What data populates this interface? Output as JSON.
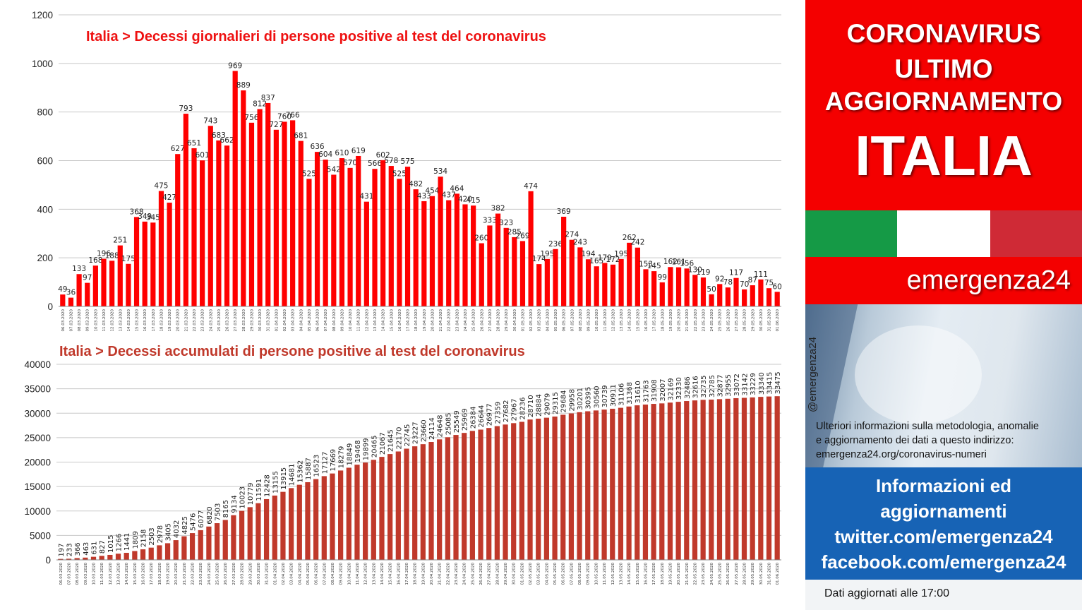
{
  "chart_data": [
    {
      "type": "bar",
      "title": "Italia > Decessi giornalieri di persone positive al test del coronavirus",
      "ylim": [
        0,
        1200
      ],
      "yticks": [
        0,
        200,
        400,
        600,
        800,
        1000,
        1200
      ],
      "grid": true,
      "bar_color": "#ff0000",
      "categories": [
        "06.03.2020",
        "07.03.2020",
        "08.03.2020",
        "09.03.2020",
        "10.03.2020",
        "11.03.2020",
        "12.03.2020",
        "13.03.2020",
        "14.03.2020",
        "15.03.2020",
        "16.03.2020",
        "17.03.2020",
        "18.03.2020",
        "19.03.2020",
        "20.03.2020",
        "21.03.2020",
        "22.03.2020",
        "23.03.2020",
        "24.03.2020",
        "25.03.2020",
        "26.03.2020",
        "27.03.2020",
        "28.03.2020",
        "29.03.2020",
        "30.03.2020",
        "31.03.2020",
        "01.04.2020",
        "02.04.2020",
        "03.04.2020",
        "04.04.2020",
        "05.04.2020",
        "06.04.2020",
        "07.04.2020",
        "08.04.2020",
        "09.04.2020",
        "10.04.2020",
        "11.04.2020",
        "12.04.2020",
        "13.04.2020",
        "14.04.2020",
        "15.04.2020",
        "16.04.2020",
        "17.04.2020",
        "18.04.2020",
        "19.04.2020",
        "20.04.2020",
        "21.04.2020",
        "22.04.2020",
        "23.04.2020",
        "24.04.2020",
        "25.04.2020",
        "26.04.2020",
        "27.04.2020",
        "28.04.2020",
        "29.04.2020",
        "30.04.2020",
        "01.05.2020",
        "02.05.2020",
        "03.05.2020",
        "04.05.2020",
        "05.05.2020",
        "06.05.2020",
        "07.05.2020",
        "08.05.2020",
        "09.05.2020",
        "10.05.2020",
        "11.05.2020",
        "12.05.2020",
        "13.05.2020",
        "14.05.2020",
        "15.05.2020",
        "16.05.2020",
        "17.05.2020",
        "18.05.2020",
        "19.05.2020",
        "20.05.2020",
        "21.05.2020",
        "22.05.2020",
        "23.05.2020",
        "24.05.2020",
        "25.05.2020",
        "26.05.2020",
        "27.05.2020",
        "28.05.2020",
        "29.05.2020",
        "30.05.2020",
        "31.05.2020",
        "01.06.2020"
      ],
      "values": [
        49,
        36,
        133,
        97,
        168,
        196,
        188,
        251,
        175,
        368,
        349,
        345,
        475,
        427,
        627,
        793,
        651,
        601,
        743,
        683,
        662,
        969,
        889,
        756,
        812,
        837,
        727,
        760,
        766,
        681,
        525,
        636,
        604,
        542,
        610,
        570,
        619,
        431,
        566,
        602,
        578,
        525,
        575,
        482,
        433,
        454,
        534,
        437,
        464,
        420,
        415,
        260,
        333,
        382,
        323,
        285,
        269,
        474,
        174,
        195,
        236,
        369,
        274,
        243,
        194,
        165,
        179,
        172,
        195,
        262,
        242,
        153,
        145,
        99,
        162,
        161,
        156,
        130,
        119,
        50,
        92,
        78,
        117,
        70,
        87,
        111,
        75,
        60
      ]
    },
    {
      "type": "bar",
      "title": "Italia > Decessi accumulati di persone positive al test del coronavirus",
      "ylim": [
        0,
        40000
      ],
      "yticks": [
        0,
        5000,
        10000,
        15000,
        20000,
        25000,
        30000,
        35000,
        40000
      ],
      "grid": true,
      "bar_color": "#c0392b",
      "categories": [
        "06.03.2020",
        "07.03.2020",
        "08.03.2020",
        "09.03.2020",
        "10.03.2020",
        "11.03.2020",
        "12.03.2020",
        "13.03.2020",
        "14.03.2020",
        "15.03.2020",
        "16.03.2020",
        "17.03.2020",
        "18.03.2020",
        "19.03.2020",
        "20.03.2020",
        "21.03.2020",
        "22.03.2020",
        "23.03.2020",
        "24.03.2020",
        "25.03.2020",
        "26.03.2020",
        "27.03.2020",
        "28.03.2020",
        "29.03.2020",
        "30.03.2020",
        "31.03.2020",
        "01.04.2020",
        "02.04.2020",
        "03.04.2020",
        "04.04.2020",
        "05.04.2020",
        "06.04.2020",
        "07.04.2020",
        "08.04.2020",
        "09.04.2020",
        "10.04.2020",
        "11.04.2020",
        "12.04.2020",
        "13.04.2020",
        "14.04.2020",
        "15.04.2020",
        "16.04.2020",
        "17.04.2020",
        "18.04.2020",
        "19.04.2020",
        "20.04.2020",
        "21.04.2020",
        "22.04.2020",
        "23.04.2020",
        "24.04.2020",
        "25.04.2020",
        "26.04.2020",
        "27.04.2020",
        "28.04.2020",
        "29.04.2020",
        "30.04.2020",
        "01.05.2020",
        "02.05.2020",
        "03.05.2020",
        "04.05.2020",
        "05.05.2020",
        "06.05.2020",
        "07.05.2020",
        "08.05.2020",
        "09.05.2020",
        "10.05.2020",
        "11.05.2020",
        "12.05.2020",
        "13.05.2020",
        "14.05.2020",
        "15.05.2020",
        "16.05.2020",
        "17.05.2020",
        "18.05.2020",
        "19.05.2020",
        "20.05.2020",
        "21.05.2020",
        "22.05.2020",
        "23.05.2020",
        "24.05.2020",
        "25.05.2020",
        "26.05.2020",
        "27.05.2020",
        "28.05.2020",
        "29.05.2020",
        "30.05.2020",
        "31.05.2020",
        "01.06.2020"
      ],
      "values": [
        197,
        233,
        366,
        463,
        631,
        827,
        1015,
        1266,
        1441,
        1809,
        2158,
        2503,
        2978,
        3405,
        4032,
        4825,
        5476,
        6077,
        6820,
        7503,
        8165,
        9134,
        10023,
        10779,
        11591,
        12428,
        13155,
        13915,
        14681,
        15362,
        15887,
        16523,
        17127,
        17669,
        18279,
        18849,
        19468,
        19899,
        20465,
        21067,
        21645,
        22170,
        22745,
        23227,
        23660,
        24114,
        24648,
        25085,
        25549,
        25969,
        26384,
        26644,
        26977,
        27359,
        27682,
        27967,
        28236,
        28710,
        28884,
        29079,
        29315,
        29684,
        29958,
        30201,
        30395,
        30560,
        30739,
        30911,
        31106,
        31368,
        31610,
        31763,
        31908,
        32007,
        32169,
        32330,
        32486,
        32616,
        32735,
        32785,
        32877,
        32955,
        33072,
        33142,
        33229,
        33340,
        33415,
        33475
      ]
    }
  ],
  "side": {
    "headline1": "CORONAVIRUS",
    "headline2": "ULTIMO",
    "headline3": "AGGIORNAMENTO",
    "headline4": "ITALIA",
    "brand": "emergenza24",
    "handle": "@emergenza24",
    "info_line1": "Ulteriori informazioni sulla metodologia, anomalie",
    "info_line2": "e aggiornamento dei dati a questo indirizzo:",
    "info_line3": "emergenza24.org/coronavirus-numeri",
    "blue_line1": "Informazioni ed",
    "blue_line2": "aggiornamenti",
    "blue_line3": "twitter.com/emergenza24",
    "blue_line4": "facebook.com/emergenza24",
    "footer": "Dati aggiornati alle 17:00"
  },
  "colors": {
    "red": "#f40000",
    "blue": "#1763b5",
    "flag_green": "#159a46",
    "flag_red": "#cf2a36"
  }
}
